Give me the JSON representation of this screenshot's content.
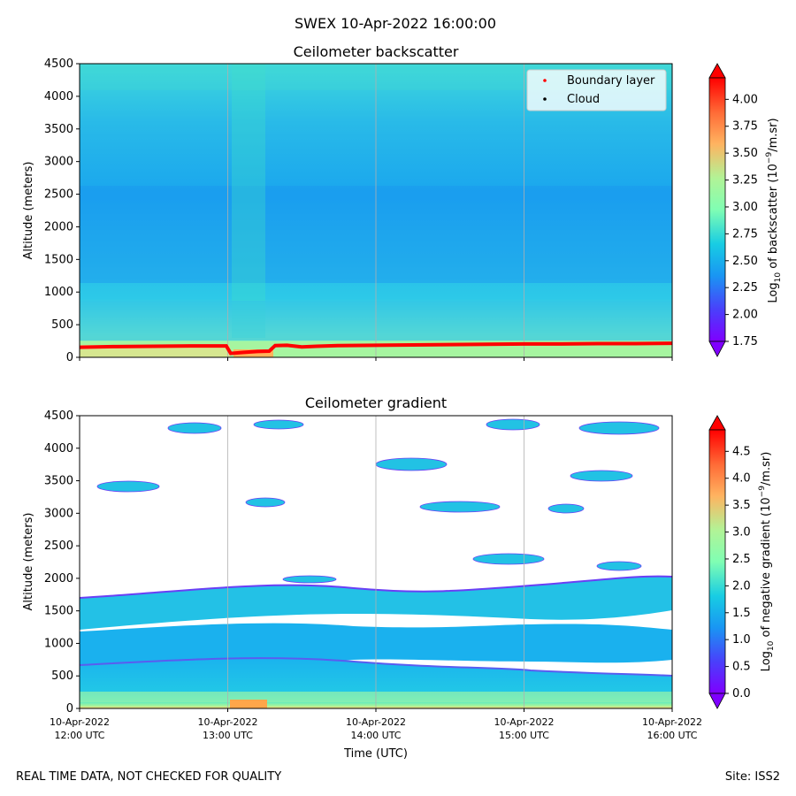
{
  "suptitle": "SWEX 10-Apr-2022 16:00:00",
  "footer": {
    "left": "REAL TIME DATA, NOT CHECKED FOR QUALITY",
    "right": "Site: ISS2"
  },
  "x_axis": {
    "label": "Time (UTC)",
    "ticks": [
      {
        "line1": "10-Apr-2022",
        "line2": "12:00 UTC"
      },
      {
        "line1": "10-Apr-2022",
        "line2": "13:00 UTC"
      },
      {
        "line1": "10-Apr-2022",
        "line2": "14:00 UTC"
      },
      {
        "line1": "10-Apr-2022",
        "line2": "15:00 UTC"
      },
      {
        "line1": "10-Apr-2022",
        "line2": "16:00 UTC"
      }
    ]
  },
  "chart_data": [
    {
      "type": "heatmap",
      "title": "Ceilometer backscatter",
      "xlabel": "",
      "ylabel": "Altitude (meters)",
      "xlim": [
        "10-Apr-2022 12:00 UTC",
        "10-Apr-2022 16:00 UTC"
      ],
      "ylim": [
        0,
        4500
      ],
      "yticks": [
        "0",
        "500",
        "1000",
        "1500",
        "2000",
        "2500",
        "3000",
        "3500",
        "4000",
        "4500"
      ],
      "grid": "vertical lines at hour ticks",
      "colorscale": "rainbow",
      "colorbar": {
        "label": "Log10 of backscatter (10^-9/m.sr)",
        "label_main": "Log",
        "label_sub": "10",
        "label_mid": " of backscatter (10",
        "label_sup": "−9",
        "label_end": "/m.sr)",
        "min": 1.75,
        "max": 4.2,
        "extend": "both",
        "ticks": [
          "1.75",
          "2.00",
          "2.25",
          "2.50",
          "2.75",
          "3.00",
          "3.25",
          "3.50",
          "3.75",
          "4.00"
        ]
      },
      "legend": {
        "placement": "upper right",
        "entries": [
          {
            "name": "Boundary layer",
            "color": "#ff0000"
          },
          {
            "name": "Cloud",
            "color": "#000000"
          }
        ]
      },
      "series": [
        {
          "name": "Boundary layer",
          "x_hours_utc": [
            12.0,
            12.25,
            12.5,
            12.75,
            12.99,
            13.02,
            13.1,
            13.2,
            13.28,
            13.32,
            13.4,
            13.5,
            13.6,
            13.75,
            14.0,
            14.25,
            14.5,
            14.75,
            15.0,
            15.25,
            15.5,
            15.75,
            16.0
          ],
          "y": [
            155,
            165,
            170,
            175,
            175,
            60,
            75,
            90,
            95,
            180,
            185,
            160,
            170,
            180,
            185,
            190,
            195,
            200,
            205,
            205,
            210,
            210,
            215
          ]
        }
      ],
      "features": [
        {
          "description": "high backscatter layer near surface",
          "altitude_m": [
            0,
            200
          ],
          "log10_value": 3.2
        },
        {
          "description": "layer",
          "altitude_m": [
            300,
            700
          ],
          "log10_value": 2.75
        },
        {
          "description": "layer",
          "altitude_m": [
            700,
            1800
          ],
          "log10_value": 2.5
        },
        {
          "description": "layer",
          "altitude_m": [
            1800,
            3800
          ],
          "log10_value": 2.4
        },
        {
          "description": "layer",
          "altitude_m": [
            3800,
            4500
          ],
          "log10_value": 2.6
        }
      ]
    },
    {
      "type": "heatmap",
      "title": "Ceilometer gradient",
      "xlabel": "Time (UTC)",
      "ylabel": "Altitude (meters)",
      "xlim": [
        "10-Apr-2022 12:00 UTC",
        "10-Apr-2022 16:00 UTC"
      ],
      "ylim": [
        0,
        4500
      ],
      "yticks": [
        "0",
        "500",
        "1000",
        "1500",
        "2000",
        "2500",
        "3000",
        "3500",
        "4000",
        "4500"
      ],
      "grid": "vertical lines at hour ticks",
      "colorscale": "rainbow",
      "colorbar": {
        "label": "Log10 of negative gradient (10^-9/m.sr)",
        "label_main": "Log",
        "label_sub": "10",
        "label_mid": " of negative gradient (10",
        "label_sup": "−9",
        "label_end": "/m.sr)",
        "min": 0.0,
        "max": 4.9,
        "extend": "both",
        "ticks": [
          "0.0",
          "0.5",
          "1.0",
          "1.5",
          "2.0",
          "2.5",
          "3.0",
          "3.5",
          "4.0",
          "4.5"
        ]
      },
      "features": [
        {
          "description": "near-surface band",
          "altitude_m": [
            0,
            300
          ],
          "log10_value": 2.5
        },
        {
          "description": "band",
          "altitude_m": [
            300,
            650
          ],
          "log10_value": 1.7
        },
        {
          "description": "band",
          "altitude_m": [
            650,
            1250
          ],
          "log10_value": 1.3
        },
        {
          "description": "band",
          "altitude_m": [
            1250,
            1800
          ],
          "log10_value": 1.1
        },
        {
          "description": "patches",
          "altitude_m": [
            2000,
            4500
          ],
          "log10_value": 1.5
        }
      ]
    }
  ]
}
